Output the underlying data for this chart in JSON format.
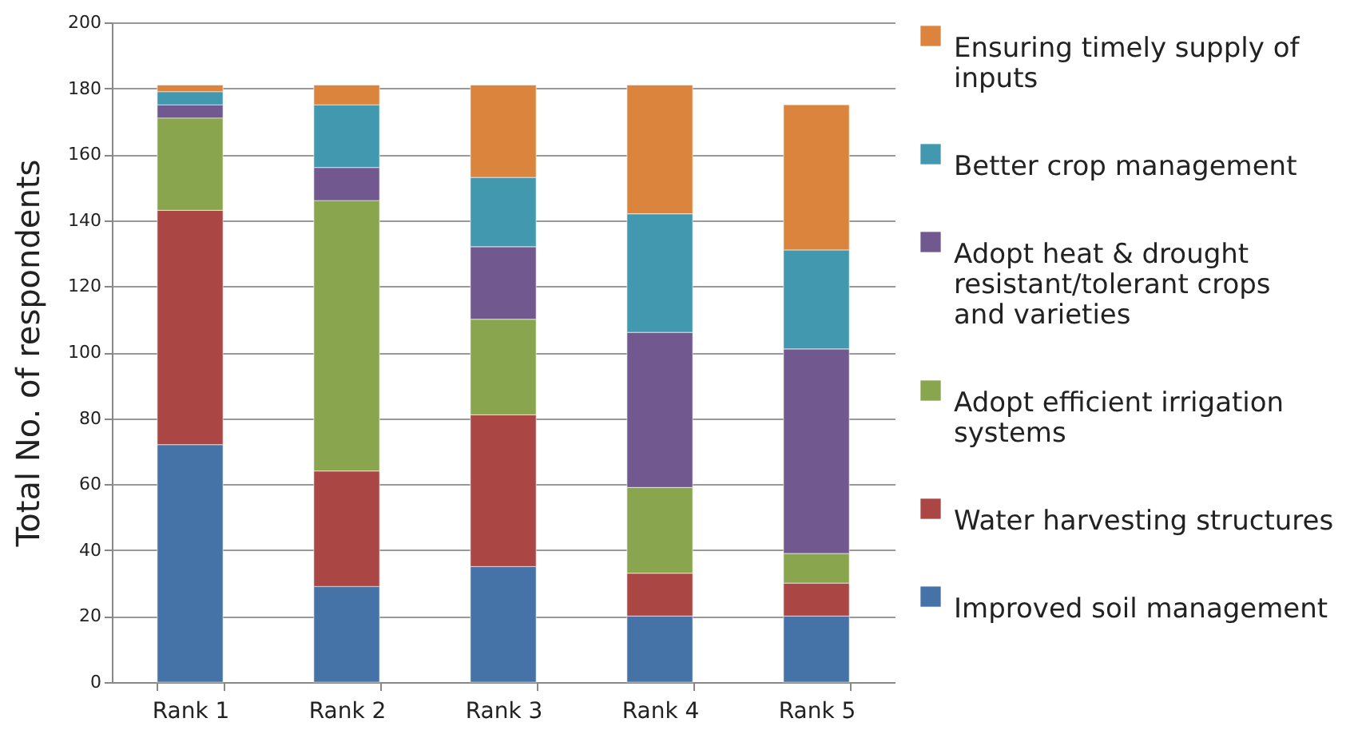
{
  "chart_data": {
    "type": "bar",
    "stacked": true,
    "ylabel": "Total No. of respondents",
    "categories": [
      "Rank 1",
      "Rank 2",
      "Rank 3",
      "Rank 4",
      "Rank 5"
    ],
    "series": [
      {
        "name": "Improved soil management",
        "color": "#4572a7",
        "values": [
          72,
          29,
          35,
          20,
          20
        ]
      },
      {
        "name": "Water harvesting structures",
        "color": "#aa4643",
        "values": [
          71,
          35,
          46,
          13,
          10
        ]
      },
      {
        "name": "Adopt efficient irrigation systems",
        "color": "#89a54e",
        "values": [
          28,
          82,
          29,
          26,
          9
        ]
      },
      {
        "name": "Adopt heat & drought resistant/tolerant crops and varieties",
        "color": "#71588f",
        "values": [
          4,
          10,
          22,
          47,
          62
        ]
      },
      {
        "name": "Better crop management",
        "color": "#4198af",
        "values": [
          4,
          19,
          21,
          36,
          30
        ]
      },
      {
        "name": "Ensuring timely supply of inputs",
        "color": "#db843d",
        "values": [
          2,
          6,
          28,
          39,
          44
        ]
      }
    ],
    "ylim": [
      0,
      200
    ],
    "yticks": [
      0,
      20,
      40,
      60,
      80,
      100,
      120,
      140,
      160,
      180,
      200
    ],
    "grid": "y",
    "legend": "right"
  }
}
